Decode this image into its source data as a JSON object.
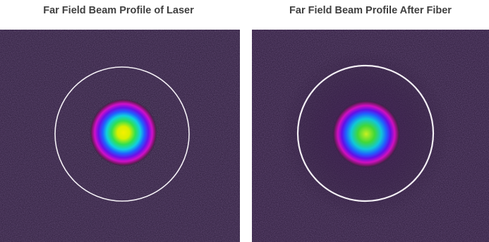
{
  "panels": [
    {
      "title": "Far Field Beam Profile of Laser"
    },
    {
      "title": "Far Field Beam Profile After Fiber"
    }
  ]
}
